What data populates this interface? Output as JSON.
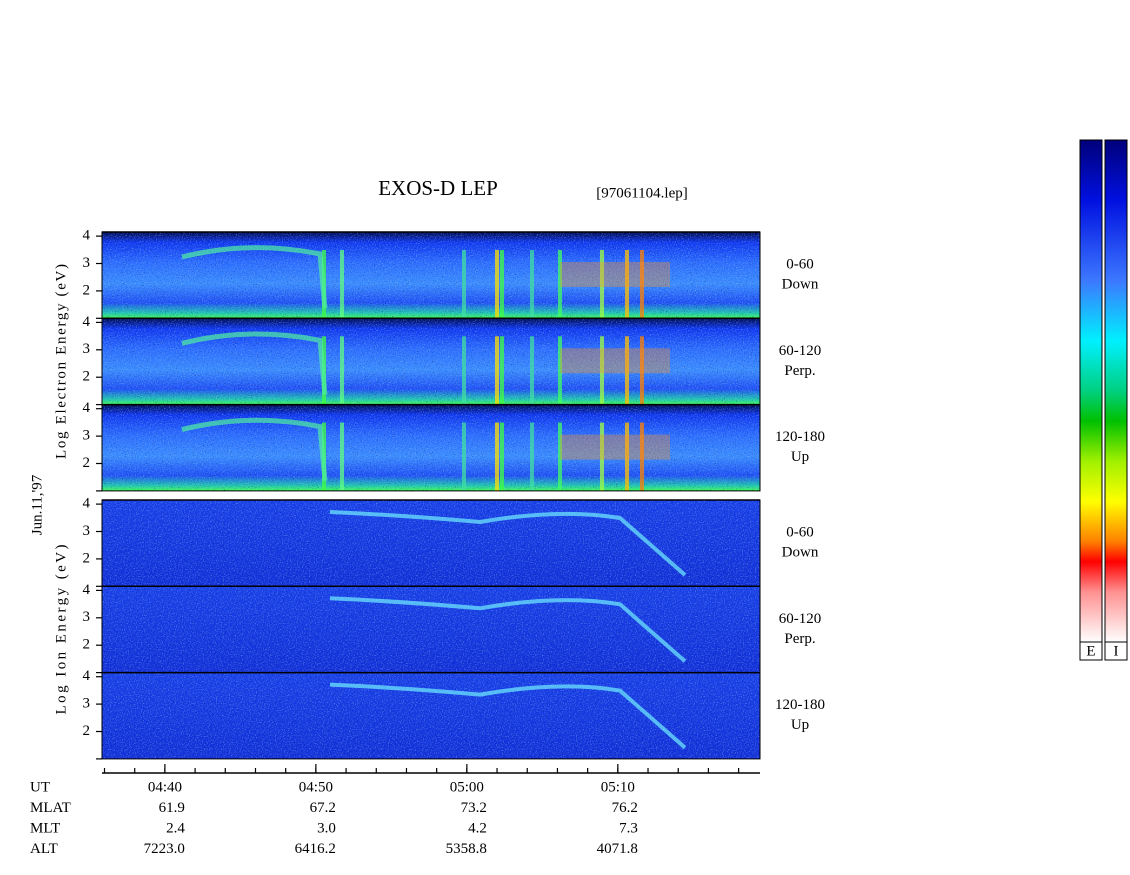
{
  "chart_data": {
    "type": "spectrogram",
    "title": "EXOS-D LEP",
    "subtitle": "[97061104.lep]",
    "date_label": "Jun.11,'97",
    "xlim": [
      "04:35:50",
      "05:19:25"
    ],
    "xticks": [
      "04:40",
      "04:50",
      "05:00",
      "05:10"
    ],
    "groups": [
      {
        "ylabel": "Log Electron Energy (eV)",
        "ylim": [
          1,
          4.15
        ],
        "yticks": [
          2,
          3,
          4
        ],
        "panels": [
          {
            "pitch": "0-60",
            "direction": "Down"
          },
          {
            "pitch": "60-120",
            "direction": "Perp."
          },
          {
            "pitch": "120-180",
            "direction": "Up"
          }
        ]
      },
      {
        "ylabel": "Log Ion Energy (eV)",
        "ylim": [
          1,
          4.15
        ],
        "yticks": [
          2,
          3,
          4
        ],
        "panels": [
          {
            "pitch": "0-60",
            "direction": "Down"
          },
          {
            "pitch": "60-120",
            "direction": "Perp."
          },
          {
            "pitch": "120-180",
            "direction": "Up"
          }
        ]
      }
    ],
    "ephemeris": [
      {
        "name": "UT"
      },
      {
        "name": "MLAT",
        "values": [
          "61.9",
          "67.2",
          "73.2",
          "76.2"
        ]
      },
      {
        "name": "MLT",
        "values": [
          "2.4",
          "3.0",
          "4.2",
          "7.3"
        ]
      },
      {
        "name": "ALT",
        "values": [
          "7223.0",
          "6416.2",
          "5358.8",
          "4071.8"
        ]
      }
    ],
    "colorbar_labels": [
      "E",
      "I"
    ]
  }
}
